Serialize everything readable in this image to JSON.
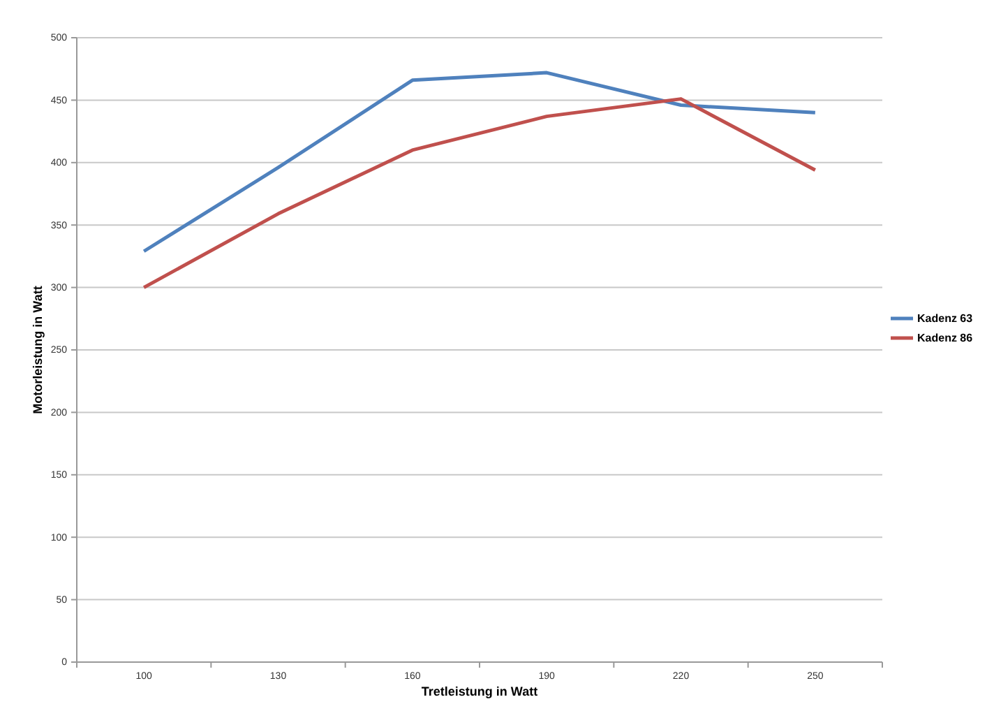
{
  "chart_data": {
    "type": "line",
    "xlabel": "Tretleistung in Watt",
    "ylabel": "Motorleistung in Watt",
    "categories": [
      "100",
      "130",
      "160",
      "190",
      "220",
      "250"
    ],
    "series": [
      {
        "name": "Kadenz 63",
        "color": "#4f81bd",
        "values": [
          329,
          396,
          466,
          472,
          446,
          440
        ]
      },
      {
        "name": "Kadenz 86",
        "color": "#c0504d",
        "values": [
          300,
          359,
          410,
          437,
          451,
          394
        ]
      }
    ],
    "ylim": [
      0,
      500
    ],
    "yticks": [
      0,
      50,
      100,
      150,
      200,
      250,
      300,
      350,
      400,
      450,
      500
    ],
    "grid": "y",
    "legend": "right",
    "marker": "none",
    "line_style": "solid"
  }
}
